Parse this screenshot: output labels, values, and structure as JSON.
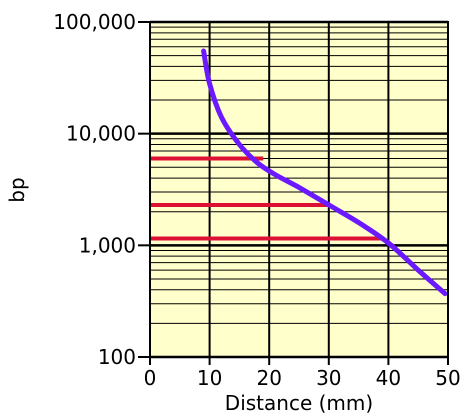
{
  "chart_data": {
    "type": "line",
    "xlabel": "Distance (mm)",
    "ylabel": "bp",
    "xlim": [
      0,
      50
    ],
    "ylim": [
      100,
      100000
    ],
    "y_scale": "log",
    "x_ticks": [
      "0",
      "10",
      "20",
      "30",
      "40",
      "50"
    ],
    "y_ticks": [
      {
        "value": 100,
        "label": "100"
      },
      {
        "value": 1000,
        "label": "1,000"
      },
      {
        "value": 10000,
        "label": "10,000"
      },
      {
        "value": 100000,
        "label": "100,000"
      }
    ],
    "grid": true,
    "background_color": "#ffffcc",
    "series": [
      {
        "color": "#6b1aff",
        "x": [
          9,
          10,
          12,
          15,
          18,
          21,
          25,
          30,
          35,
          40,
          45,
          49.5
        ],
        "y": [
          55000,
          28000,
          14000,
          8000,
          5500,
          4300,
          3300,
          2300,
          1600,
          1050,
          600,
          370
        ]
      }
    ],
    "reference_lines": {
      "color": "#dd1133",
      "lines": [
        {
          "y": 6000,
          "x_end": 19
        },
        {
          "y": 2300,
          "x_end": 30
        },
        {
          "y": 1150,
          "x_end": 39
        }
      ]
    }
  }
}
